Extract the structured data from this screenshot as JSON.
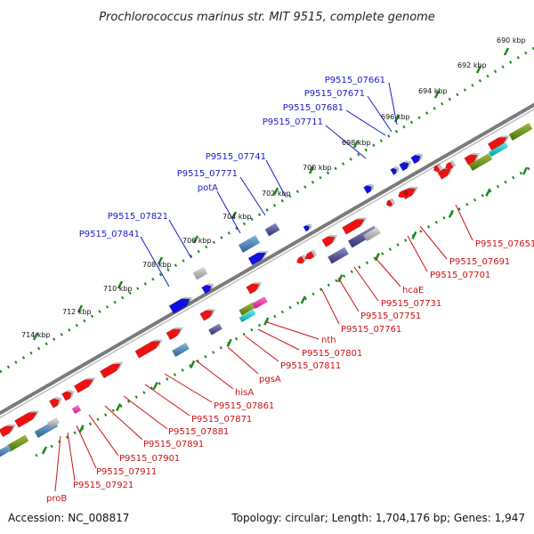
{
  "header": {
    "title": "Prochlorococcus marinus str. MIT 9515, complete genome"
  },
  "footer": {
    "accession": "Accession: NC_008817",
    "summary": "Topology: circular; Length: 1,704,176 bp; Genes: 1,947"
  },
  "scale": {
    "ticks": [
      "690 kbp",
      "692 kbp",
      "694 kbp",
      "696 kbp",
      "698 kbp",
      "700 kbp",
      "702 kbp",
      "704 kbp",
      "706 kbp",
      "708 kbp",
      "710 kbp",
      "712 kbp",
      "714 kbp"
    ]
  },
  "genes_top": [
    "P9515_07661",
    "P9515_07671",
    "P9515_07681",
    "P9515_07711",
    "P9515_07741",
    "P9515_07771",
    "potA",
    "P9515_07821",
    "P9515_07841"
  ],
  "genes_bottom": [
    "P9515_07651",
    "P9515_07691",
    "P9515_07701",
    "hcaE",
    "P9515_07731",
    "P9515_07751",
    "P9515_07761",
    "nth",
    "P9515_07801",
    "P9515_07811",
    "pgsA",
    "hisA",
    "P9515_07861",
    "P9515_07871",
    "P9515_07881",
    "P9515_07891",
    "P9515_07901",
    "P9515_07911",
    "P9515_07921",
    "proB"
  ],
  "colors": {
    "top_strand_genes": "#1010e0",
    "bottom_strand_genes": "#ee1111",
    "backbone": "#808080",
    "ticks": "#1a8a1a",
    "top_labels": "#1a1acc",
    "bottom_labels": "#cc1111"
  }
}
